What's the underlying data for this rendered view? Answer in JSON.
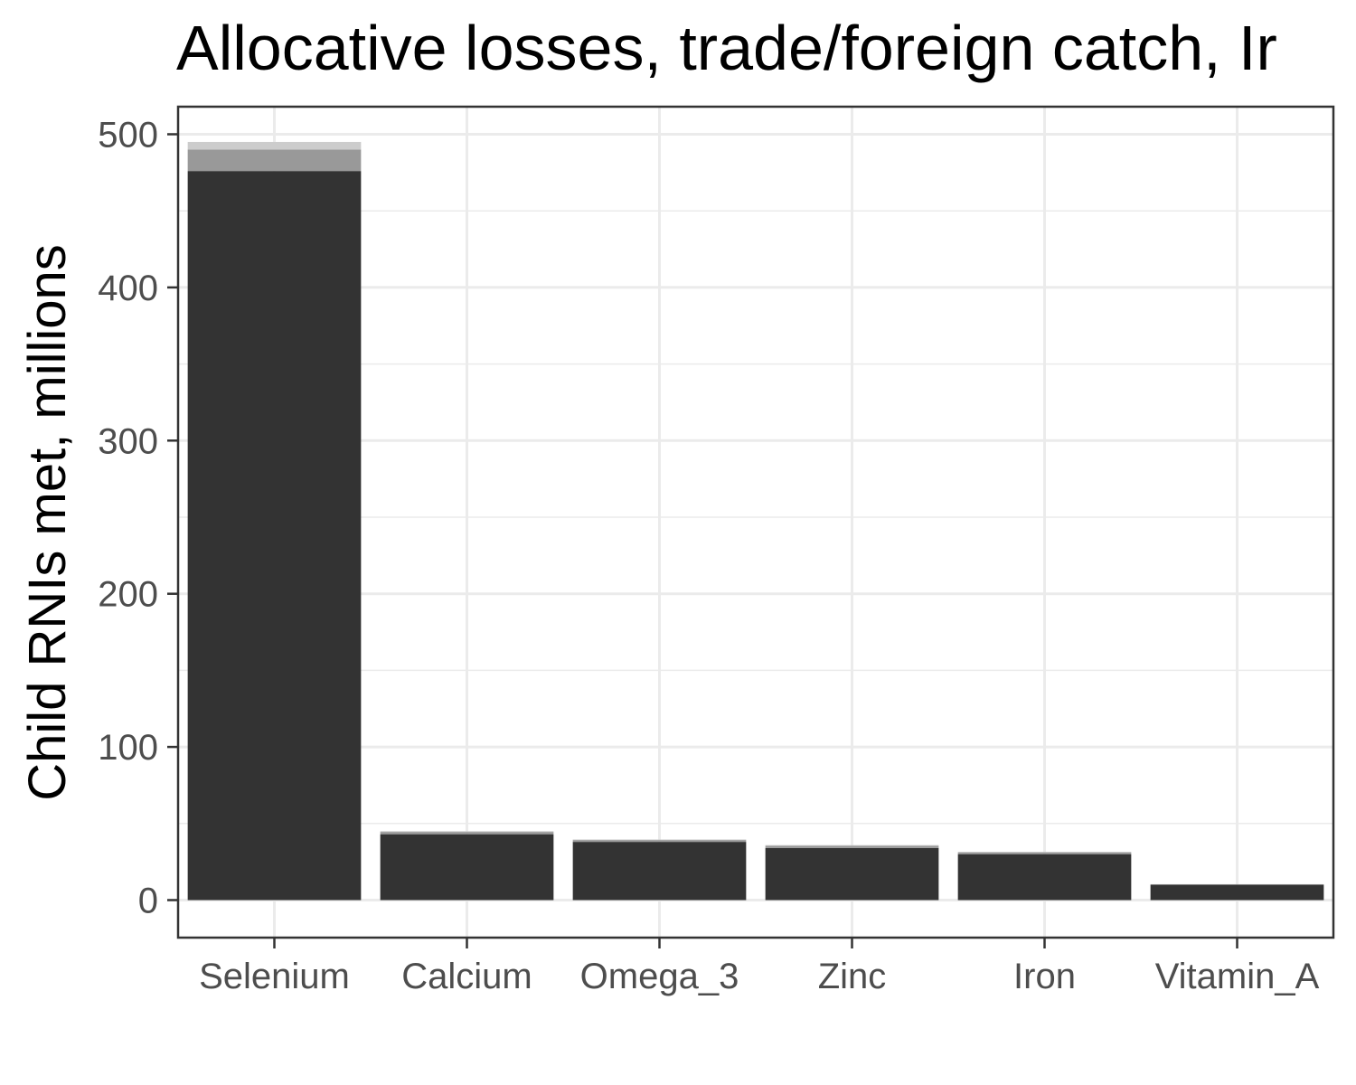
{
  "chart_data": {
    "type": "bar",
    "stacked": true,
    "title": "Allocative losses, trade/foreign catch, Ir",
    "xlabel": "",
    "ylabel": "Child RNIs met, millions",
    "categories": [
      "Selenium",
      "Calcium",
      "Omega_3",
      "Zinc",
      "Iron",
      "Vitamin_A"
    ],
    "series": [
      {
        "values": [
          476,
          43,
          38,
          34,
          30,
          10
        ]
      },
      {
        "values": [
          14,
          1.5,
          1.2,
          1.5,
          1.2,
          0.3
        ]
      },
      {
        "values": [
          5,
          0.5,
          0.4,
          0.4,
          0.3,
          0.1
        ]
      }
    ],
    "series_colors": [
      "#333333",
      "#999999",
      "#cccccc"
    ],
    "ylim": [
      -24.5,
      518
    ],
    "y_ticks": [
      0,
      100,
      200,
      300,
      400,
      500
    ],
    "grid": true,
    "legend": "none"
  }
}
